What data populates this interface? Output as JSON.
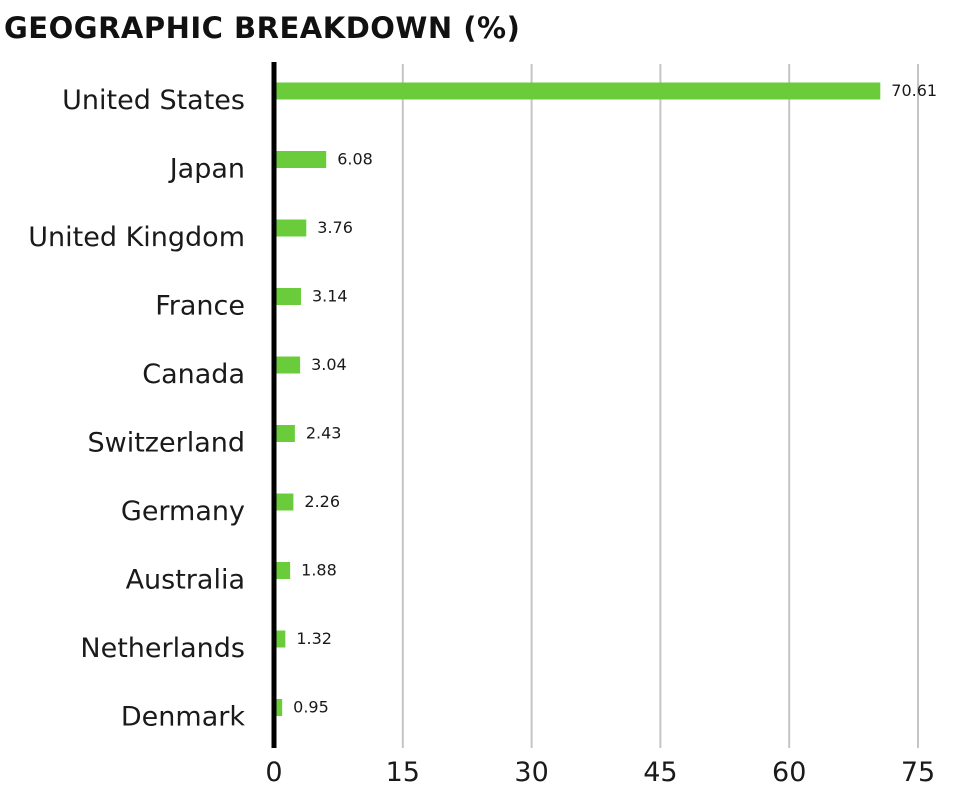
{
  "chart_data": {
    "type": "bar",
    "orientation": "horizontal",
    "title": "GEOGRAPHIC BREAKDOWN (%)",
    "categories": [
      "United States",
      "Japan",
      "United Kingdom",
      "France",
      "Canada",
      "Switzerland",
      "Germany",
      "Australia",
      "Netherlands",
      "Denmark"
    ],
    "values": [
      70.61,
      6.08,
      3.76,
      3.14,
      3.04,
      2.43,
      2.26,
      1.88,
      1.32,
      0.95
    ],
    "value_labels": [
      "70.61",
      "6.08",
      "3.76",
      "3.14",
      "3.04",
      "2.43",
      "2.26",
      "1.88",
      "1.32",
      "0.95"
    ],
    "xticks": [
      0,
      15,
      30,
      45,
      60,
      75
    ],
    "xlim": [
      0,
      75
    ],
    "xlabel": "",
    "ylabel": "",
    "grid": "vertical",
    "legend": "none",
    "colors": {
      "bar": "#6acc3a",
      "axis": "#000000",
      "grid": "#c4c4c4",
      "text": "#1a1a1a"
    }
  }
}
